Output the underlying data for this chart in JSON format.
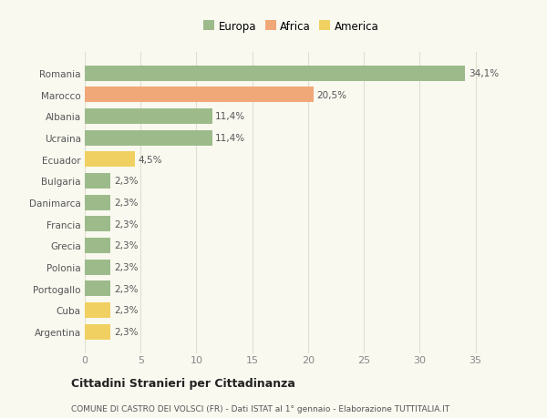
{
  "categories": [
    "Argentina",
    "Cuba",
    "Portogallo",
    "Polonia",
    "Grecia",
    "Francia",
    "Danimarca",
    "Bulgaria",
    "Ecuador",
    "Ucraina",
    "Albania",
    "Marocco",
    "Romania"
  ],
  "values": [
    2.3,
    2.3,
    2.3,
    2.3,
    2.3,
    2.3,
    2.3,
    2.3,
    4.5,
    11.4,
    11.4,
    20.5,
    34.1
  ],
  "labels": [
    "2,3%",
    "2,3%",
    "2,3%",
    "2,3%",
    "2,3%",
    "2,3%",
    "2,3%",
    "2,3%",
    "4,5%",
    "11,4%",
    "11,4%",
    "20,5%",
    "34,1%"
  ],
  "colors": [
    "#f0d060",
    "#f0d060",
    "#9dbb8a",
    "#9dbb8a",
    "#9dbb8a",
    "#9dbb8a",
    "#9dbb8a",
    "#9dbb8a",
    "#f0d060",
    "#9dbb8a",
    "#9dbb8a",
    "#f0a878",
    "#9dbb8a"
  ],
  "legend_labels": [
    "Europa",
    "Africa",
    "America"
  ],
  "legend_colors": [
    "#9dbb8a",
    "#f0a878",
    "#f0d060"
  ],
  "title": "Cittadini Stranieri per Cittadinanza",
  "subtitle": "COMUNE DI CASTRO DEI VOLSCI (FR) - Dati ISTAT al 1° gennaio - Elaborazione TUTTITALIA.IT",
  "xlim": [
    0,
    37
  ],
  "xticks": [
    0,
    5,
    10,
    15,
    20,
    25,
    30,
    35
  ],
  "background_color": "#f9f9f0",
  "grid_color": "#e0e0d0",
  "bar_height": 0.72
}
